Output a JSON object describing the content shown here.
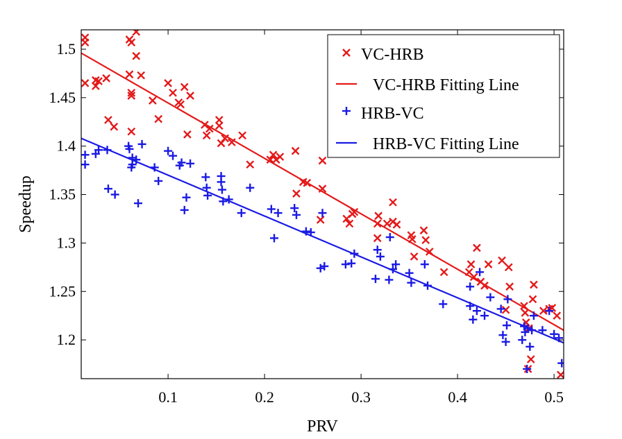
{
  "chart_data": {
    "type": "scatter",
    "title": "",
    "xlabel": "PRV",
    "ylabel": "Speedup",
    "xlim": [
      0.01,
      0.51
    ],
    "ylim": [
      1.16,
      1.52
    ],
    "xticks": [
      0.1,
      0.2,
      0.3,
      0.4,
      0.5
    ],
    "xtick_labels": [
      "0.1",
      "0.2",
      "0.3",
      "0.4",
      "0.5"
    ],
    "yticks": [
      1.2,
      1.25,
      1.3,
      1.35,
      1.4,
      1.45,
      1.5
    ],
    "ytick_labels": [
      "1.2",
      "1.25",
      "1.3",
      "1.35",
      "1.4",
      "1.45",
      "1.5"
    ],
    "grid": false,
    "legend_position": "top-right",
    "series": [
      {
        "name": "VC-HRB",
        "kind": "scatter",
        "marker": "x",
        "color": "#e41a1a",
        "points": [
          [
            0.014,
            1.512
          ],
          [
            0.014,
            1.507
          ],
          [
            0.014,
            1.465
          ],
          [
            0.025,
            1.468
          ],
          [
            0.025,
            1.462
          ],
          [
            0.028,
            1.467
          ],
          [
            0.036,
            1.47
          ],
          [
            0.038,
            1.427
          ],
          [
            0.044,
            1.42
          ],
          [
            0.06,
            1.51
          ],
          [
            0.06,
            1.474
          ],
          [
            0.062,
            1.507
          ],
          [
            0.062,
            1.455
          ],
          [
            0.062,
            1.452
          ],
          [
            0.062,
            1.415
          ],
          [
            0.067,
            1.518
          ],
          [
            0.067,
            1.493
          ],
          [
            0.072,
            1.473
          ],
          [
            0.084,
            1.447
          ],
          [
            0.09,
            1.428
          ],
          [
            0.1,
            1.465
          ],
          [
            0.105,
            1.455
          ],
          [
            0.111,
            1.445
          ],
          [
            0.113,
            1.443
          ],
          [
            0.117,
            1.461
          ],
          [
            0.12,
            1.412
          ],
          [
            0.123,
            1.452
          ],
          [
            0.138,
            1.422
          ],
          [
            0.14,
            1.411
          ],
          [
            0.143,
            1.418
          ],
          [
            0.153,
            1.427
          ],
          [
            0.153,
            1.421
          ],
          [
            0.155,
            1.403
          ],
          [
            0.159,
            1.408
          ],
          [
            0.166,
            1.404
          ],
          [
            0.177,
            1.411
          ],
          [
            0.185,
            1.381
          ],
          [
            0.206,
            1.386
          ],
          [
            0.209,
            1.391
          ],
          [
            0.212,
            1.386
          ],
          [
            0.216,
            1.389
          ],
          [
            0.232,
            1.395
          ],
          [
            0.233,
            1.351
          ],
          [
            0.24,
            1.363
          ],
          [
            0.244,
            1.362
          ],
          [
            0.26,
            1.385
          ],
          [
            0.26,
            1.356
          ],
          [
            0.258,
            1.324
          ],
          [
            0.285,
            1.325
          ],
          [
            0.288,
            1.32
          ],
          [
            0.291,
            1.33
          ],
          [
            0.293,
            1.332
          ],
          [
            0.317,
            1.32
          ],
          [
            0.317,
            1.305
          ],
          [
            0.318,
            1.328
          ],
          [
            0.327,
            1.32
          ],
          [
            0.333,
            1.322
          ],
          [
            0.333,
            1.342
          ],
          [
            0.337,
            1.319
          ],
          [
            0.352,
            1.308
          ],
          [
            0.353,
            1.304
          ],
          [
            0.355,
            1.286
          ],
          [
            0.365,
            1.313
          ],
          [
            0.367,
            1.303
          ],
          [
            0.371,
            1.291
          ],
          [
            0.386,
            1.27
          ],
          [
            0.412,
            1.27
          ],
          [
            0.414,
            1.278
          ],
          [
            0.417,
            1.265
          ],
          [
            0.42,
            1.295
          ],
          [
            0.424,
            1.26
          ],
          [
            0.428,
            1.256
          ],
          [
            0.432,
            1.278
          ],
          [
            0.446,
            1.282
          ],
          [
            0.45,
            1.231
          ],
          [
            0.453,
            1.275
          ],
          [
            0.454,
            1.255
          ],
          [
            0.469,
            1.235
          ],
          [
            0.47,
            1.228
          ],
          [
            0.471,
            1.218
          ],
          [
            0.473,
            1.17
          ],
          [
            0.474,
            1.212
          ],
          [
            0.476,
            1.18
          ],
          [
            0.478,
            1.242
          ],
          [
            0.479,
            1.257
          ],
          [
            0.489,
            1.23
          ],
          [
            0.495,
            1.232
          ],
          [
            0.498,
            1.233
          ],
          [
            0.503,
            1.225
          ],
          [
            0.507,
            1.164
          ]
        ]
      },
      {
        "name": "VC-HRB Fitting Line",
        "kind": "line",
        "color": "#e41a1a",
        "points": [
          [
            0.01,
            1.496
          ],
          [
            0.51,
            1.21
          ]
        ]
      },
      {
        "name": "HRB-VC",
        "kind": "scatter",
        "marker": "+",
        "color": "#1a1ae4",
        "points": [
          [
            0.014,
            1.391
          ],
          [
            0.014,
            1.381
          ],
          [
            0.025,
            1.392
          ],
          [
            0.028,
            1.396
          ],
          [
            0.037,
            1.396
          ],
          [
            0.038,
            1.356
          ],
          [
            0.045,
            1.35
          ],
          [
            0.059,
            1.4
          ],
          [
            0.06,
            1.397
          ],
          [
            0.062,
            1.378
          ],
          [
            0.063,
            1.381
          ],
          [
            0.063,
            1.388
          ],
          [
            0.067,
            1.386
          ],
          [
            0.069,
            1.341
          ],
          [
            0.073,
            1.402
          ],
          [
            0.086,
            1.378
          ],
          [
            0.09,
            1.364
          ],
          [
            0.1,
            1.395
          ],
          [
            0.105,
            1.39
          ],
          [
            0.112,
            1.38
          ],
          [
            0.114,
            1.383
          ],
          [
            0.117,
            1.334
          ],
          [
            0.119,
            1.347
          ],
          [
            0.123,
            1.382
          ],
          [
            0.139,
            1.368
          ],
          [
            0.14,
            1.357
          ],
          [
            0.141,
            1.349
          ],
          [
            0.155,
            1.369
          ],
          [
            0.155,
            1.363
          ],
          [
            0.156,
            1.355
          ],
          [
            0.157,
            1.343
          ],
          [
            0.163,
            1.345
          ],
          [
            0.176,
            1.331
          ],
          [
            0.185,
            1.357
          ],
          [
            0.207,
            1.335
          ],
          [
            0.21,
            1.305
          ],
          [
            0.214,
            1.331
          ],
          [
            0.231,
            1.336
          ],
          [
            0.233,
            1.329
          ],
          [
            0.243,
            1.312
          ],
          [
            0.248,
            1.311
          ],
          [
            0.258,
            1.274
          ],
          [
            0.26,
            1.331
          ],
          [
            0.262,
            1.276
          ],
          [
            0.284,
            1.278
          ],
          [
            0.29,
            1.279
          ],
          [
            0.293,
            1.289
          ],
          [
            0.315,
            1.263
          ],
          [
            0.317,
            1.293
          ],
          [
            0.32,
            1.286
          ],
          [
            0.329,
            1.262
          ],
          [
            0.33,
            1.306
          ],
          [
            0.333,
            1.273
          ],
          [
            0.336,
            1.278
          ],
          [
            0.35,
            1.269
          ],
          [
            0.352,
            1.259
          ],
          [
            0.366,
            1.278
          ],
          [
            0.369,
            1.256
          ],
          [
            0.385,
            1.237
          ],
          [
            0.413,
            1.235
          ],
          [
            0.413,
            1.255
          ],
          [
            0.416,
            1.221
          ],
          [
            0.42,
            1.23
          ],
          [
            0.423,
            1.27
          ],
          [
            0.428,
            1.225
          ],
          [
            0.434,
            1.244
          ],
          [
            0.445,
            1.232
          ],
          [
            0.447,
            1.205
          ],
          [
            0.45,
            1.198
          ],
          [
            0.451,
            1.215
          ],
          [
            0.452,
            1.242
          ],
          [
            0.467,
            1.2
          ],
          [
            0.469,
            1.214
          ],
          [
            0.47,
            1.208
          ],
          [
            0.472,
            1.17
          ],
          [
            0.473,
            1.212
          ],
          [
            0.475,
            1.193
          ],
          [
            0.477,
            1.21
          ],
          [
            0.479,
            1.225
          ],
          [
            0.488,
            1.21
          ],
          [
            0.495,
            1.23
          ],
          [
            0.5,
            1.206
          ],
          [
            0.505,
            1.202
          ],
          [
            0.508,
            1.176
          ]
        ]
      },
      {
        "name": "HRB-VC Fitting Line",
        "kind": "line",
        "color": "#1a1ae4",
        "points": [
          [
            0.01,
            1.408
          ],
          [
            0.51,
            1.197
          ]
        ]
      }
    ]
  }
}
